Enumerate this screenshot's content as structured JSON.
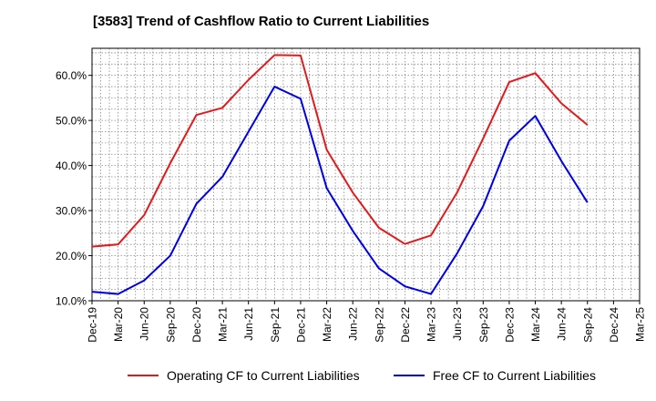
{
  "chart_data": {
    "type": "line",
    "title": "[3583]  Trend of Cashflow Ratio to Current Liabilities",
    "xlabel": "",
    "ylabel": "",
    "ylim": [
      10,
      66
    ],
    "y_ticks": [
      10,
      20,
      30,
      40,
      50,
      60
    ],
    "y_tick_labels": [
      "10.0%",
      "20.0%",
      "30.0%",
      "40.0%",
      "50.0%",
      "60.0%"
    ],
    "x_tick_labels": [
      "Dec-19",
      "Mar-20",
      "Jun-20",
      "Sep-20",
      "Dec-20",
      "Mar-21",
      "Jun-21",
      "Sep-21",
      "Dec-21",
      "Mar-22",
      "Jun-22",
      "Sep-22",
      "Dec-22",
      "Mar-23",
      "Jun-23",
      "Sep-23",
      "Dec-23",
      "Mar-24",
      "Jun-24",
      "Sep-24",
      "Dec-24",
      "Mar-25"
    ],
    "grid": true,
    "legend_position": "bottom",
    "series": [
      {
        "name": "Operating CF to Current Liabilities",
        "color": "#e31a1c",
        "x": [
          "Dec-19",
          "Mar-20",
          "Jun-20",
          "Sep-20",
          "Dec-20",
          "Mar-21",
          "Jun-21",
          "Sep-21",
          "Dec-21",
          "Mar-22",
          "Jun-22",
          "Sep-22",
          "Dec-22",
          "Mar-23",
          "Jun-23",
          "Sep-23",
          "Dec-23",
          "Mar-24",
          "Jun-24",
          "Sep-24"
        ],
        "values": [
          22.0,
          22.5,
          29.0,
          40.5,
          51.2,
          52.8,
          59.0,
          64.5,
          64.4,
          43.5,
          34.0,
          26.2,
          22.6,
          24.5,
          34.0,
          46.0,
          58.5,
          60.5,
          53.8,
          49.0
        ]
      },
      {
        "name": "Free CF to Current Liabilities",
        "color": "#0000e6",
        "x": [
          "Dec-19",
          "Mar-20",
          "Jun-20",
          "Sep-20",
          "Dec-20",
          "Mar-21",
          "Jun-21",
          "Sep-21",
          "Dec-21",
          "Mar-22",
          "Jun-22",
          "Sep-22",
          "Dec-22",
          "Mar-23",
          "Jun-23",
          "Sep-23",
          "Dec-23",
          "Mar-24",
          "Jun-24",
          "Sep-24"
        ],
        "values": [
          12.0,
          11.5,
          14.5,
          20.0,
          31.5,
          37.5,
          47.5,
          57.5,
          54.8,
          35.0,
          25.5,
          17.2,
          13.2,
          11.5,
          20.5,
          31.0,
          45.5,
          51.0,
          41.0,
          31.8
        ]
      }
    ]
  }
}
